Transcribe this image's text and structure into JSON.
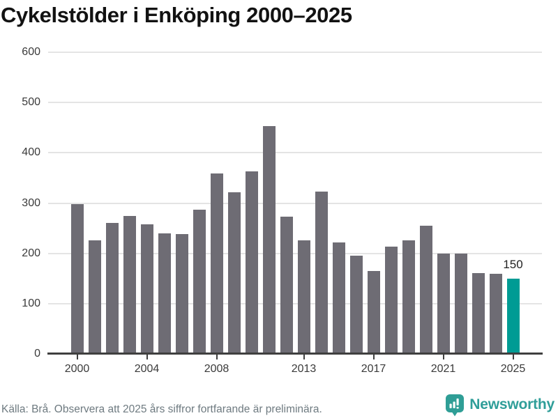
{
  "title": "Cykelstölder i Enköping 2000–2025",
  "footer": {
    "source_note": "Källa: Brå. Observera att 2025 års siffror fortfarande är preliminära.",
    "brand": "Newsworthy",
    "logo_icon": "newsworthy-speech-bubble-bar-chart"
  },
  "colors": {
    "bar": "#6e6c74",
    "highlight_bar": "#009b94",
    "gridline": "#e4e4e4",
    "axis_line": "#3f3f3f",
    "tick_text": "#3a3a3a",
    "title_text": "#121212",
    "footer_text": "#6e7a80",
    "brand_teal": "#2f9e99",
    "annotation_text": "#222222"
  },
  "chart_data": {
    "type": "bar",
    "title": "Cykelstölder i Enköping 2000–2025",
    "xlabel": "",
    "ylabel": "",
    "x": [
      2000,
      2001,
      2002,
      2003,
      2004,
      2005,
      2006,
      2007,
      2008,
      2009,
      2010,
      2011,
      2012,
      2013,
      2014,
      2015,
      2016,
      2017,
      2018,
      2019,
      2020,
      2021,
      2022,
      2023,
      2024,
      2025
    ],
    "values": [
      298,
      226,
      260,
      274,
      258,
      240,
      238,
      287,
      359,
      321,
      363,
      454,
      273,
      226,
      323,
      222,
      196,
      165,
      213,
      226,
      255,
      200,
      200,
      161,
      159,
      150
    ],
    "highlight_index": 25,
    "annotations": [
      {
        "x": 2025,
        "text": "150"
      }
    ],
    "ylim": [
      0,
      600
    ],
    "yticks": [
      0,
      100,
      200,
      300,
      400,
      500,
      600
    ],
    "xticks": [
      2000,
      2004,
      2008,
      2013,
      2017,
      2021,
      2025
    ],
    "grid": "horizontal",
    "legend": null
  }
}
